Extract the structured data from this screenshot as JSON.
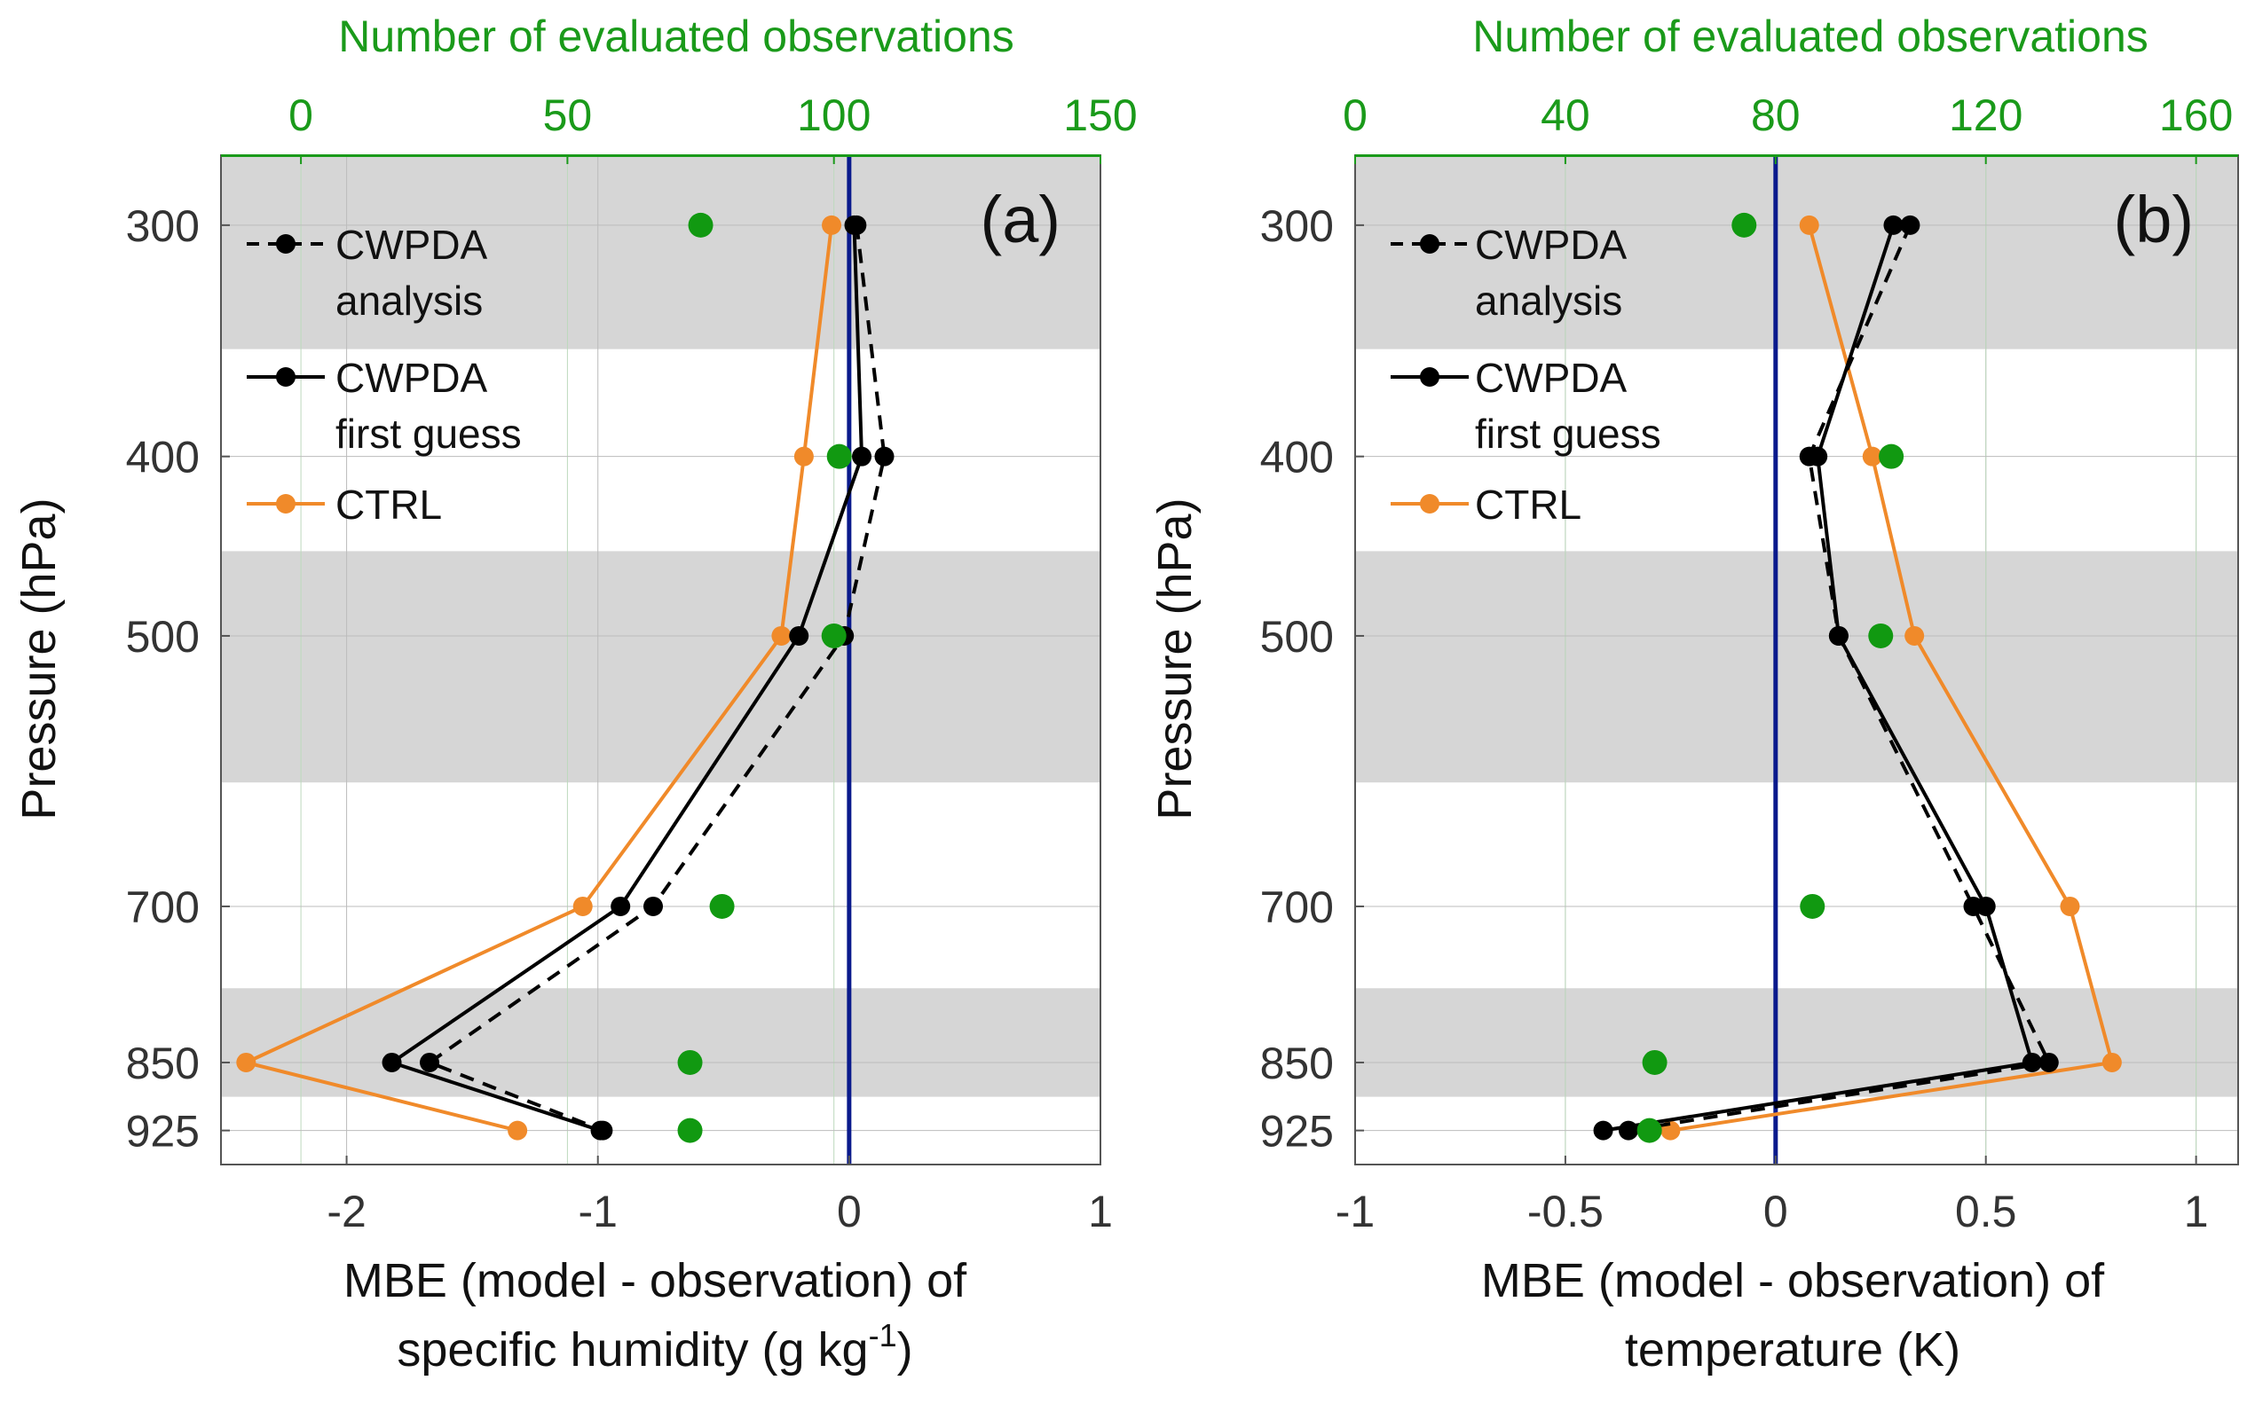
{
  "figure": {
    "legend": {
      "analysis_line1": "CWPDA",
      "analysis_line2": "analysis",
      "firstguess_line1": "CWPDA",
      "firstguess_line2": "first guess",
      "ctrl": "CTRL"
    },
    "colors": {
      "analysis": "#000000",
      "first_guess": "#000000",
      "ctrl": "#f08a2a",
      "observations": "#119911",
      "zero_line": "#0a1a8c",
      "shading": "#d6d6d6",
      "top_axis": "#1a9a1a"
    }
  },
  "chart_data": [
    {
      "type": "line",
      "panel_label": "(a)",
      "xlabel_line1": "MBE (model - observation) of",
      "xlabel_line2": "specific humidity (g kg",
      "xlabel_sup": "-1",
      "xlabel_close": ")",
      "ylabel": "Pressure (hPa)",
      "top_xlabel": "Number of evaluated observations",
      "xlim": [
        -2.5,
        1.0
      ],
      "xticks": [
        "-2",
        "-1",
        "0",
        "1"
      ],
      "xtick_values": [
        -2,
        -1,
        0,
        1
      ],
      "top_xlim": [
        -15,
        150
      ],
      "top_xticks": [
        "0",
        "50",
        "100",
        "150"
      ],
      "top_xtick_values": [
        0,
        50,
        100,
        150
      ],
      "ylim": [
        275,
        965
      ],
      "yticks": [
        "300",
        "400",
        "500",
        "700",
        "850",
        "925"
      ],
      "ytick_values": [
        300,
        400,
        500,
        700,
        850,
        925
      ],
      "shaded_bands": [
        [
          275,
          350
        ],
        [
          450,
          600
        ],
        [
          775,
          887
        ]
      ],
      "series": [
        {
          "name": "CWPDA analysis",
          "style": "dashed",
          "pressure": [
            300,
            400,
            500,
            700,
            850,
            925
          ],
          "values": [
            0.03,
            0.14,
            -0.02,
            -0.78,
            -1.67,
            -0.98
          ]
        },
        {
          "name": "CWPDA first guess",
          "style": "solid",
          "pressure": [
            300,
            400,
            500,
            700,
            850,
            925
          ],
          "values": [
            0.02,
            0.05,
            -0.2,
            -0.91,
            -1.82,
            -0.99
          ]
        },
        {
          "name": "CTRL",
          "style": "solid",
          "pressure": [
            300,
            400,
            500,
            700,
            850,
            925
          ],
          "values": [
            -0.07,
            -0.18,
            -0.27,
            -1.06,
            -2.4,
            -1.32
          ]
        }
      ],
      "observations": {
        "name": "Number of evaluated observations",
        "pressure": [
          300,
          400,
          500,
          700,
          850,
          925
        ],
        "counts": [
          75,
          101,
          100,
          79,
          73,
          73
        ]
      }
    },
    {
      "type": "line",
      "panel_label": "(b)",
      "xlabel_line1": "MBE (model - observation) of",
      "xlabel_line2": "temperature (K)",
      "ylabel": "Pressure (hPa)",
      "top_xlabel": "Number of evaluated observations",
      "xlim": [
        -1.0,
        1.1
      ],
      "xticks": [
        "-1",
        "-0.5",
        "0",
        "0.5",
        "1"
      ],
      "xtick_values": [
        -1,
        -0.5,
        0,
        0.5,
        1
      ],
      "top_xlim": [
        0,
        168
      ],
      "top_xticks": [
        "0",
        "40",
        "80",
        "120",
        "160"
      ],
      "top_xtick_values": [
        0,
        40,
        80,
        120,
        160
      ],
      "ylim": [
        275,
        965
      ],
      "yticks": [
        "300",
        "400",
        "500",
        "700",
        "850",
        "925"
      ],
      "ytick_values": [
        300,
        400,
        500,
        700,
        850,
        925
      ],
      "shaded_bands": [
        [
          275,
          350
        ],
        [
          450,
          600
        ],
        [
          775,
          887
        ]
      ],
      "series": [
        {
          "name": "CWPDA analysis",
          "style": "dashed",
          "pressure": [
            300,
            400,
            500,
            700,
            850,
            925
          ],
          "values": [
            0.32,
            0.08,
            0.15,
            0.47,
            0.65,
            -0.35
          ]
        },
        {
          "name": "CWPDA first guess",
          "style": "solid",
          "pressure": [
            300,
            400,
            500,
            700,
            850,
            925
          ],
          "values": [
            0.28,
            0.1,
            0.15,
            0.5,
            0.61,
            -0.41
          ]
        },
        {
          "name": "CTRL",
          "style": "solid",
          "pressure": [
            300,
            400,
            500,
            700,
            850,
            925
          ],
          "values": [
            0.08,
            0.23,
            0.33,
            0.7,
            0.8,
            -0.25
          ]
        }
      ],
      "observations": {
        "name": "Number of evaluated observations",
        "pressure": [
          300,
          400,
          500,
          700,
          850,
          925
        ],
        "counts": [
          74,
          102,
          100,
          87,
          57,
          56
        ]
      }
    }
  ]
}
